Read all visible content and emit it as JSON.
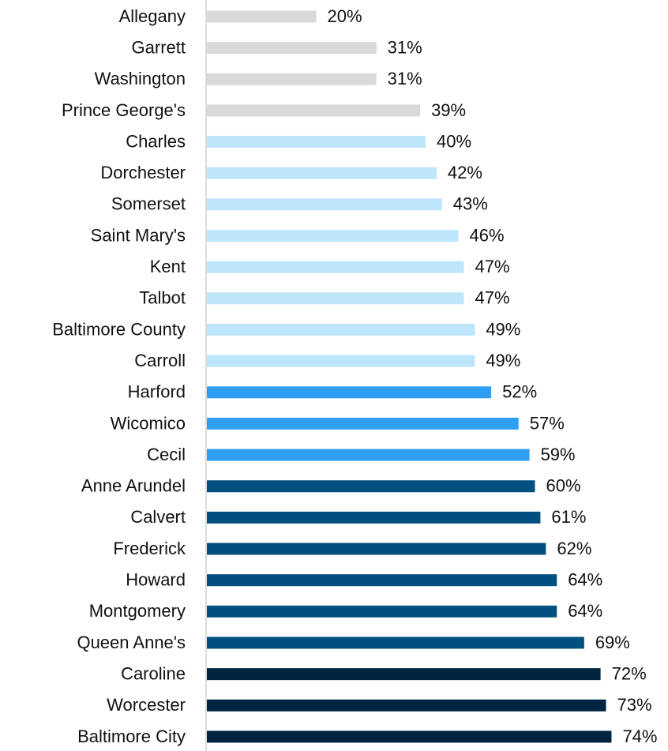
{
  "chart_data": {
    "type": "hbar",
    "categories": [
      "Allegany",
      "Garrett",
      "Washington",
      "Prince George's",
      "Charles",
      "Dorchester",
      "Somerset",
      "Saint Mary's",
      "Kent",
      "Talbot",
      "Baltimore County",
      "Carroll",
      "Harford",
      "Wicomico",
      "Cecil",
      "Anne Arundel",
      "Calvert",
      "Frederick",
      "Howard",
      "Montgomery",
      "Queen Anne's",
      "Caroline",
      "Worcester",
      "Baltimore City"
    ],
    "values": [
      20,
      31,
      31,
      39,
      40,
      42,
      43,
      46,
      47,
      47,
      49,
      49,
      52,
      57,
      59,
      60,
      61,
      62,
      64,
      64,
      69,
      72,
      73,
      74
    ],
    "value_labels": [
      "20%",
      "31%",
      "31%",
      "39%",
      "40%",
      "42%",
      "43%",
      "46%",
      "47%",
      "47%",
      "49%",
      "49%",
      "52%",
      "57%",
      "59%",
      "60%",
      "61%",
      "62%",
      "64%",
      "64%",
      "69%",
      "72%",
      "73%",
      "74%"
    ],
    "colors": [
      "#d9d9d9",
      "#d9d9d9",
      "#d9d9d9",
      "#d9d9d9",
      "#bde5fb",
      "#bde5fb",
      "#bde5fb",
      "#bde5fb",
      "#bde5fb",
      "#bde5fb",
      "#bde5fb",
      "#bde5fb",
      "#2e9ff5",
      "#2e9ff5",
      "#2e9ff5",
      "#00507f",
      "#00507f",
      "#00507f",
      "#00507f",
      "#00507f",
      "#00507f",
      "#002440",
      "#002440",
      "#002440"
    ],
    "xlim": [
      0,
      80
    ]
  }
}
